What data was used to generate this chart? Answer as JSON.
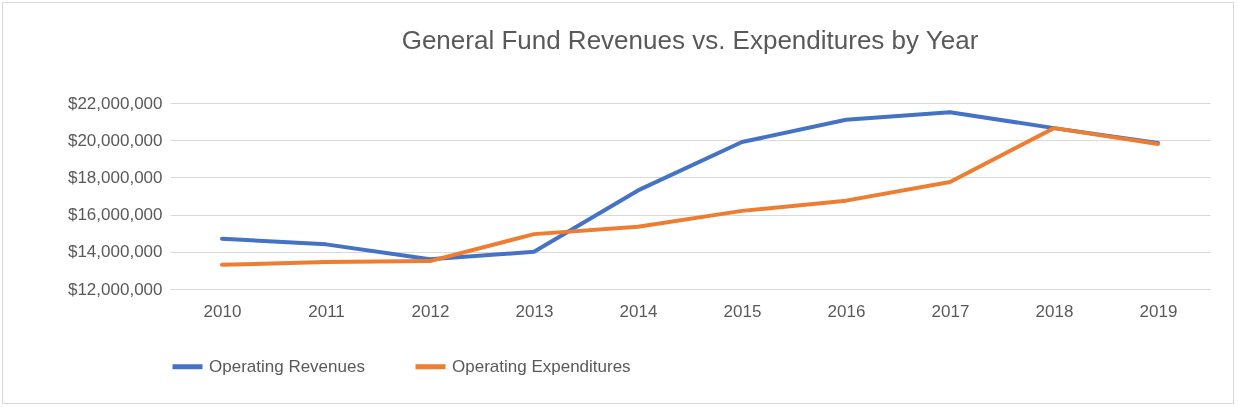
{
  "chart_data": {
    "type": "line",
    "title": "General Fund Revenues vs. Expenditures by Year",
    "categories": [
      "2010",
      "2011",
      "2012",
      "2013",
      "2014",
      "2015",
      "2016",
      "2017",
      "2018",
      "2019"
    ],
    "series": [
      {
        "name": "Operating Revenues",
        "color": "#4472c4",
        "values": [
          14700000,
          14400000,
          13600000,
          14000000,
          17300000,
          19900000,
          21100000,
          21500000,
          20650000,
          19850000
        ]
      },
      {
        "name": "Operating Expenditures",
        "color": "#ed7d31",
        "values": [
          13300000,
          13450000,
          13500000,
          14950000,
          15350000,
          16200000,
          16750000,
          17750000,
          20650000,
          19800000
        ]
      }
    ],
    "ylim": [
      12000000,
      22000000
    ],
    "yticks": [
      {
        "value": 12000000,
        "label": "$12,000,000"
      },
      {
        "value": 14000000,
        "label": "$14,000,000"
      },
      {
        "value": 16000000,
        "label": "$16,000,000"
      },
      {
        "value": 18000000,
        "label": "$18,000,000"
      },
      {
        "value": 20000000,
        "label": "$20,000,000"
      },
      {
        "value": 22000000,
        "label": "$22,000,000"
      }
    ],
    "grid": "y",
    "legend": "bottom",
    "marker": "none",
    "line_style": "solid"
  }
}
